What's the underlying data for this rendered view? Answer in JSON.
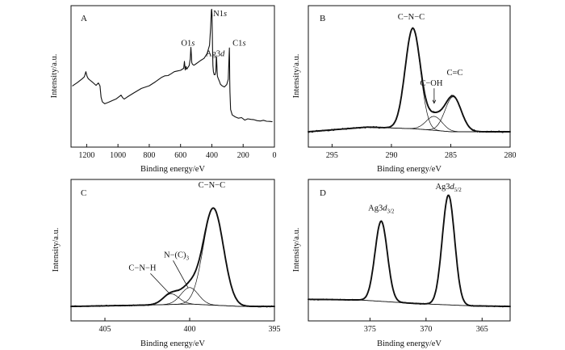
{
  "chart_data": [
    {
      "id": "A",
      "type": "line",
      "panel_label": "A",
      "xlabel": "Binding energy/eV",
      "ylabel": "Intensity/a.u.",
      "xlim": [
        1300,
        0
      ],
      "ylim": [
        0,
        10
      ],
      "xticks": [
        1200,
        1000,
        800,
        600,
        400,
        200,
        0
      ],
      "annotations": [
        {
          "text": "O1",
          "italic": "s",
          "x": 532,
          "y": 7.3
        },
        {
          "text": "N1",
          "italic": "s",
          "x": 399,
          "y": 9.5
        },
        {
          "text": "Ag3",
          "italic": "d",
          "x": 368,
          "y": 6.5
        },
        {
          "text": "C1",
          "italic": "s",
          "x": 287,
          "y": 7.3
        }
      ],
      "series": [
        {
          "x": [
            1290,
            1260,
            1230,
            1215,
            1205,
            1198,
            1190,
            1180,
            1160,
            1140,
            1125,
            1115,
            1108,
            1100,
            1092,
            1085,
            1075,
            1060,
            1040,
            1010,
            980,
            970,
            960,
            940,
            900,
            850,
            800,
            760,
            720,
            700,
            680,
            660,
            640,
            620,
            600,
            580,
            575,
            570,
            565,
            560,
            545,
            538,
            534,
            531,
            528,
            524,
            515,
            505,
            490,
            470,
            450,
            430,
            415,
            408,
            403,
            401,
            399,
            397,
            395,
            393,
            390,
            385,
            378,
            374,
            372,
            370,
            368,
            366,
            364,
            360,
            352,
            345,
            335,
            320,
            305,
            295,
            290,
            288,
            287,
            286,
            284,
            280,
            270,
            250,
            230,
            210,
            190,
            170,
            150,
            130,
            110,
            90,
            70,
            50,
            30,
            15
          ],
          "y": [
            4.1,
            4.3,
            4.6,
            4.8,
            5.1,
            4.8,
            4.6,
            4.5,
            4.3,
            4.1,
            4.3,
            4.0,
            3.2,
            2.8,
            2.7,
            2.6,
            2.7,
            2.8,
            2.9,
            3.0,
            3.3,
            3.1,
            3.0,
            3.2,
            3.5,
            3.8,
            4.1,
            4.4,
            4.7,
            4.8,
            4.9,
            5.0,
            5.1,
            5.2,
            5.3,
            5.4,
            5.9,
            5.3,
            5.5,
            5.4,
            5.6,
            6.1,
            7.0,
            6.5,
            5.9,
            5.7,
            5.6,
            5.7,
            5.8,
            6.0,
            6.2,
            6.6,
            7.2,
            8.6,
            9.9,
            10.0,
            9.6,
            8.3,
            6.8,
            5.6,
            5.1,
            4.9,
            4.9,
            5.2,
            6.1,
            6.3,
            5.6,
            5.0,
            4.8,
            4.6,
            4.4,
            4.2,
            4.1,
            4.0,
            4.1,
            4.6,
            6.4,
            7.0,
            6.2,
            4.6,
            3.6,
            2.2,
            1.8,
            1.6,
            1.5,
            1.5,
            1.4,
            1.4,
            1.35,
            1.35,
            1.3,
            1.3,
            1.3,
            1.25,
            1.25,
            1.25
          ]
        }
      ]
    },
    {
      "id": "B",
      "type": "line",
      "panel_label": "B",
      "xlabel": "Binding energy/eV",
      "ylabel": "Intensity/a.u.",
      "xlim": [
        297,
        280
      ],
      "ylim": [
        0,
        10
      ],
      "xticks": [
        295,
        290,
        285,
        280
      ],
      "annotations": [
        {
          "text": "C−N−C",
          "x": 288.2,
          "y": 9.75
        },
        {
          "text": "C−OH",
          "x": 286.5,
          "y": 4.5
        },
        {
          "text": "C=C",
          "x": 284.8,
          "y": 5.4
        }
      ],
      "peaks": [
        {
          "name": "C−N−C",
          "center": 288.2,
          "height": 8.6,
          "fwhm": 1.5
        },
        {
          "name": "C−OH",
          "center": 286.4,
          "height": 1.2,
          "fwhm": 1.6
        },
        {
          "name": "C=C",
          "center": 284.8,
          "height": 3.0,
          "fwhm": 1.6
        }
      ],
      "background": {
        "x": [
          297,
          292,
          288,
          285,
          280
        ],
        "y": [
          0.35,
          0.75,
          0.6,
          0.35,
          0.35
        ]
      }
    },
    {
      "id": "C",
      "type": "line",
      "panel_label": "C",
      "xlabel": "Binding energy/eV",
      "ylabel": "Intensity/a.u.",
      "xlim": [
        407,
        395
      ],
      "ylim": [
        0,
        10
      ],
      "xticks": [
        405,
        400,
        395
      ],
      "annotations": [
        {
          "text": "C−N−C",
          "x": 398.6,
          "y": 9.7
        },
        {
          "text": "N−(C)",
          "sub": "3",
          "x": 400.5,
          "y": 4.5
        },
        {
          "text": "C−N−H",
          "x": 402.6,
          "y": 3.4
        }
      ],
      "peaks": [
        {
          "name": "C−N−C",
          "center": 398.6,
          "height": 8.2,
          "fwhm": 1.4
        },
        {
          "name": "N−(C)3",
          "center": 400.0,
          "height": 1.4,
          "fwhm": 1.2
        },
        {
          "name": "C−N−H",
          "center": 401.1,
          "height": 0.9,
          "fwhm": 1.1
        }
      ],
      "background": {
        "x": [
          407,
          403,
          400,
          397,
          395
        ],
        "y": [
          0.2,
          0.3,
          0.4,
          0.2,
          0.2
        ]
      }
    },
    {
      "id": "D",
      "type": "line",
      "panel_label": "D",
      "xlabel": "Binding energy/eV",
      "ylabel": "Intensity/a.u.",
      "xlim": [
        380.5,
        362.5
      ],
      "ylim": [
        0,
        10
      ],
      "xticks": [
        375,
        370,
        365
      ],
      "annotations": [
        {
          "text": "Ag3",
          "italic": "d",
          "sub": "3/2",
          "x": 374.0,
          "y": 8.2
        },
        {
          "text": "Ag3",
          "italic": "d",
          "sub": "5/2",
          "x": 368.0,
          "y": 10.0
        }
      ],
      "peaks": [
        {
          "name": "Ag3d3/2",
          "center": 374.0,
          "height": 6.8,
          "fwhm": 1.3
        },
        {
          "name": "Ag3d5/2",
          "center": 368.0,
          "height": 9.3,
          "fwhm": 1.3
        }
      ],
      "background": {
        "x": [
          380.5,
          376,
          371,
          366,
          362.5
        ],
        "y": [
          0.8,
          0.75,
          0.45,
          0.25,
          0.2
        ]
      }
    }
  ]
}
